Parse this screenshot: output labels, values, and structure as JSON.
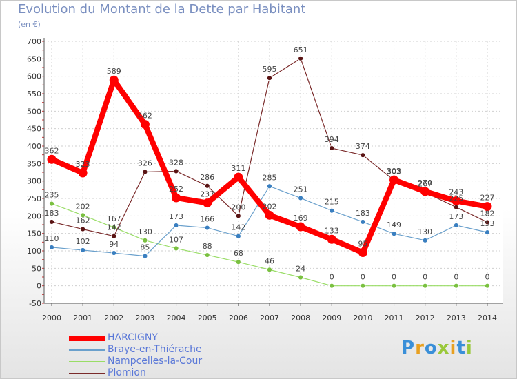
{
  "title": "Evolution du Montant de la Dette par Habitant",
  "unit_label": "(en €)",
  "logo_text": "Proxiti",
  "chart_data": {
    "type": "line",
    "title": "Evolution du Montant de la Dette par Habitant",
    "ylabel": "(en €)",
    "xlabel": "",
    "categories": [
      "2000",
      "2001",
      "2002",
      "2003",
      "2004",
      "2005",
      "2006",
      "2007",
      "2008",
      "2009",
      "2010",
      "2011",
      "2012",
      "2013",
      "2014"
    ],
    "ylim": [
      -50,
      700
    ],
    "yticks": [
      -50,
      0,
      50,
      100,
      150,
      200,
      250,
      300,
      350,
      400,
      450,
      500,
      550,
      600,
      650,
      700
    ],
    "grid": true,
    "legend_position": "bottom-left",
    "series": [
      {
        "name": "HARCIGNY",
        "color": "#ff0000",
        "values": [
          362,
          323,
          589,
          462,
          252,
          237,
          311,
          202,
          169,
          133,
          95,
          303,
          270,
          243,
          227
        ]
      },
      {
        "name": "Braye-en-Thiérache",
        "color": "#6aa0cc",
        "values": [
          110,
          102,
          94,
          85,
          173,
          166,
          142,
          285,
          251,
          215,
          183,
          149,
          130,
          173,
          153
        ]
      },
      {
        "name": "Nampcelles-la-Cour",
        "color": "#99dd66",
        "values": [
          235,
          202,
          167,
          130,
          107,
          88,
          68,
          46,
          24,
          0,
          0,
          0,
          0,
          0,
          0
        ]
      },
      {
        "name": "Plomion",
        "color": "#7a2a2a",
        "values": [
          183,
          162,
          142,
          326,
          328,
          286,
          200,
          595,
          651,
          394,
          374,
          302,
          267,
          225,
          182
        ]
      }
    ]
  }
}
